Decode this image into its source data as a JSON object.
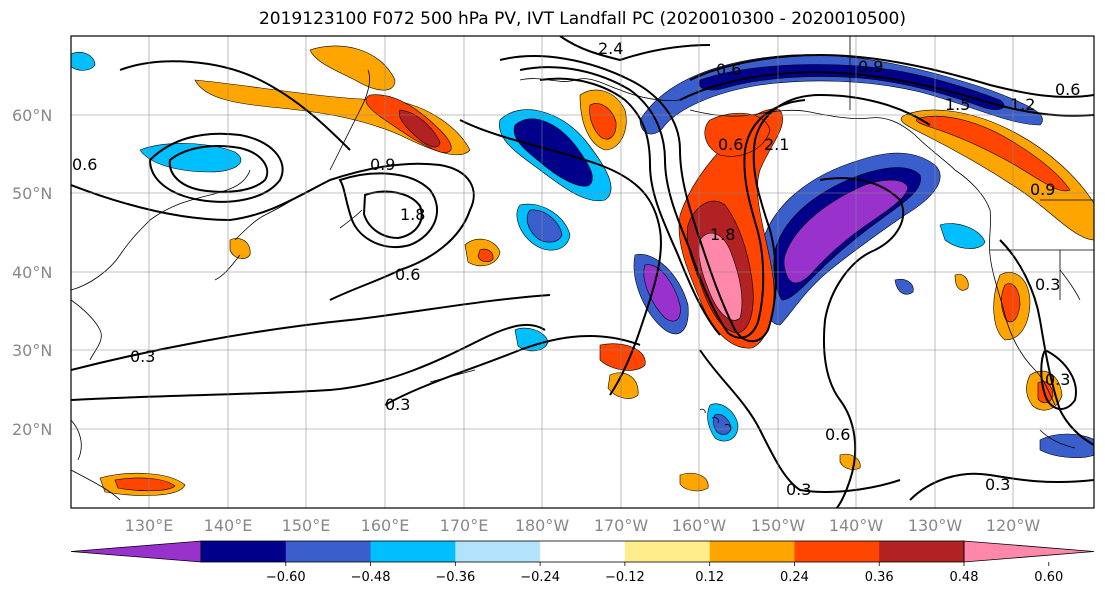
{
  "title": "2019123100 F072 500 hPa PV, IVT Landfall PC (2020010300 - 2020010500)",
  "lat_labels": [
    "60°N",
    "50°N",
    "40°N",
    "30°N",
    "20°N"
  ],
  "lon_labels": [
    "130°E",
    "140°E",
    "150°E",
    "160°E",
    "170°E",
    "180°W",
    "170°W",
    "160°W",
    "150°W",
    "140°W",
    "130°W",
    "120°W"
  ],
  "colorbar": {
    "colors": [
      "#9932cc",
      "#00008b",
      "#3a5fcd",
      "#00bfff",
      "#b2e3fb",
      "#ffffff",
      "#ffec8b",
      "#ffa500",
      "#ff4500",
      "#b22222",
      "#ff88aa"
    ],
    "tick_labels": [
      "−0.60",
      "−0.48",
      "−0.36",
      "−0.24",
      "−0.12",
      "0.12",
      "0.24",
      "0.36",
      "0.48",
      "0.60"
    ]
  },
  "contour_labels": [
    "2.4",
    "0.6",
    "0.9",
    "1.5",
    "1.2",
    "2.1",
    "1.8",
    "0.6",
    "0.6",
    "1.8",
    "0.9",
    "0.6",
    "0.3",
    "0.3",
    "0.3",
    "0.3",
    "0.6",
    "0.3",
    "0.6",
    "0.9",
    "0.3"
  ]
}
